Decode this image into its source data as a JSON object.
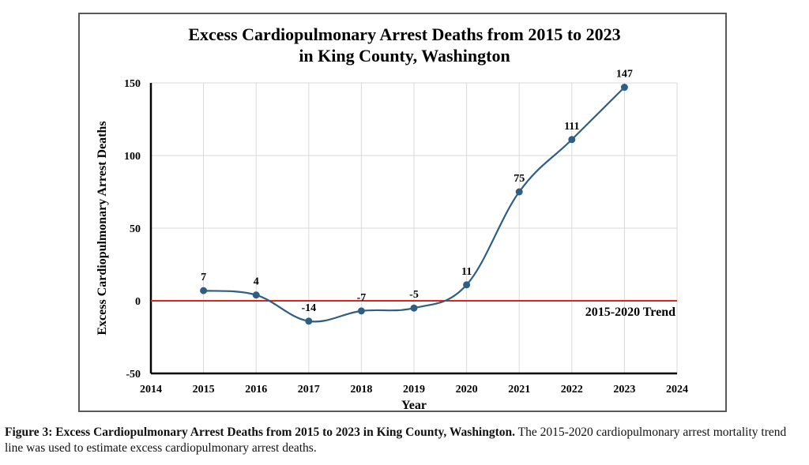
{
  "chart_data": {
    "type": "line",
    "title_lines": [
      "Excess Cardiopulmonary Arrest Deaths from 2015 to 2023",
      "in King County, Washington"
    ],
    "xlabel": "Year",
    "ylabel": "Excess Cardiopulmonary Arrest Deaths",
    "xlim": [
      2014,
      2024
    ],
    "ylim": [
      -50,
      150
    ],
    "x_ticks": [
      2014,
      2015,
      2016,
      2017,
      2018,
      2019,
      2020,
      2021,
      2022,
      2023,
      2024
    ],
    "y_ticks": [
      -50,
      0,
      50,
      100,
      150
    ],
    "grid": true,
    "series": [
      {
        "name": "Excess Deaths",
        "color": "#2e5f82",
        "smooth": true,
        "x": [
          2015,
          2016,
          2017,
          2018,
          2019,
          2020,
          2021,
          2022,
          2023
        ],
        "y": [
          7,
          4,
          -14,
          -7,
          -5,
          11,
          75,
          111,
          147
        ],
        "labels": [
          "7",
          "4",
          "-14",
          "-7",
          "-5",
          "11",
          "75",
          "111",
          "147"
        ]
      }
    ],
    "reference_line": {
      "name": "2015-2020 Trend",
      "y": 0,
      "color": "#e0231b",
      "label": "2015-2020 Trend"
    }
  },
  "caption": {
    "bold": "Figure 3: Excess Cardiopulmonary Arrest Deaths from 2015 to 2023 in King County, Washington.",
    "text": " The 2015-2020 cardiopulmonary arrest mortality trend line was used to estimate excess cardiopulmonary arrest deaths."
  }
}
